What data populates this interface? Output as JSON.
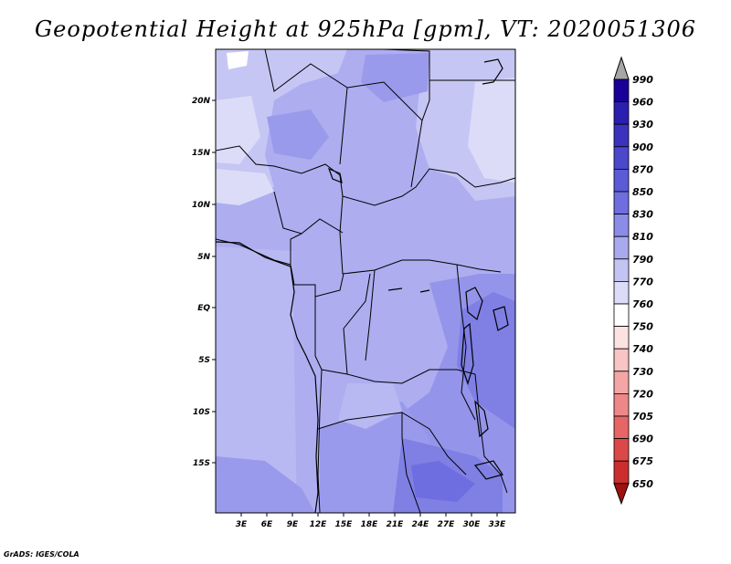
{
  "title": "Geopotential Height at 925hPa [gpm], VT: 2020051306",
  "credit": "GrADS: IGES/COLA",
  "map": {
    "lon_ticks": [
      "3E",
      "6E",
      "9E",
      "12E",
      "15E",
      "18E",
      "21E",
      "24E",
      "27E",
      "30E",
      "33E"
    ],
    "lat_ticks": [
      "20N",
      "15N",
      "10N",
      "5N",
      "EQ",
      "5S",
      "10S",
      "15S"
    ]
  },
  "colorbar": {
    "levels": [
      "990",
      "960",
      "930",
      "900",
      "870",
      "850",
      "830",
      "810",
      "790",
      "770",
      "760",
      "750",
      "740",
      "730",
      "720",
      "705",
      "690",
      "675",
      "650"
    ],
    "colors": [
      "#1a0099",
      "#2a1fae",
      "#3b33bf",
      "#4b48cc",
      "#5b5bd8",
      "#6e6ee0",
      "#8b8be8",
      "#a9a9ef",
      "#c4c4f3",
      "#dcdcf8",
      "#ffffff",
      "#fde2e2",
      "#f9c4c4",
      "#f4a6a6",
      "#ee8888",
      "#e66666",
      "#dc4848",
      "#cc2e2e",
      "#b31818"
    ],
    "top_arrow_color": "#a6a6a6",
    "bottom_arrow_color": "#a01010"
  }
}
